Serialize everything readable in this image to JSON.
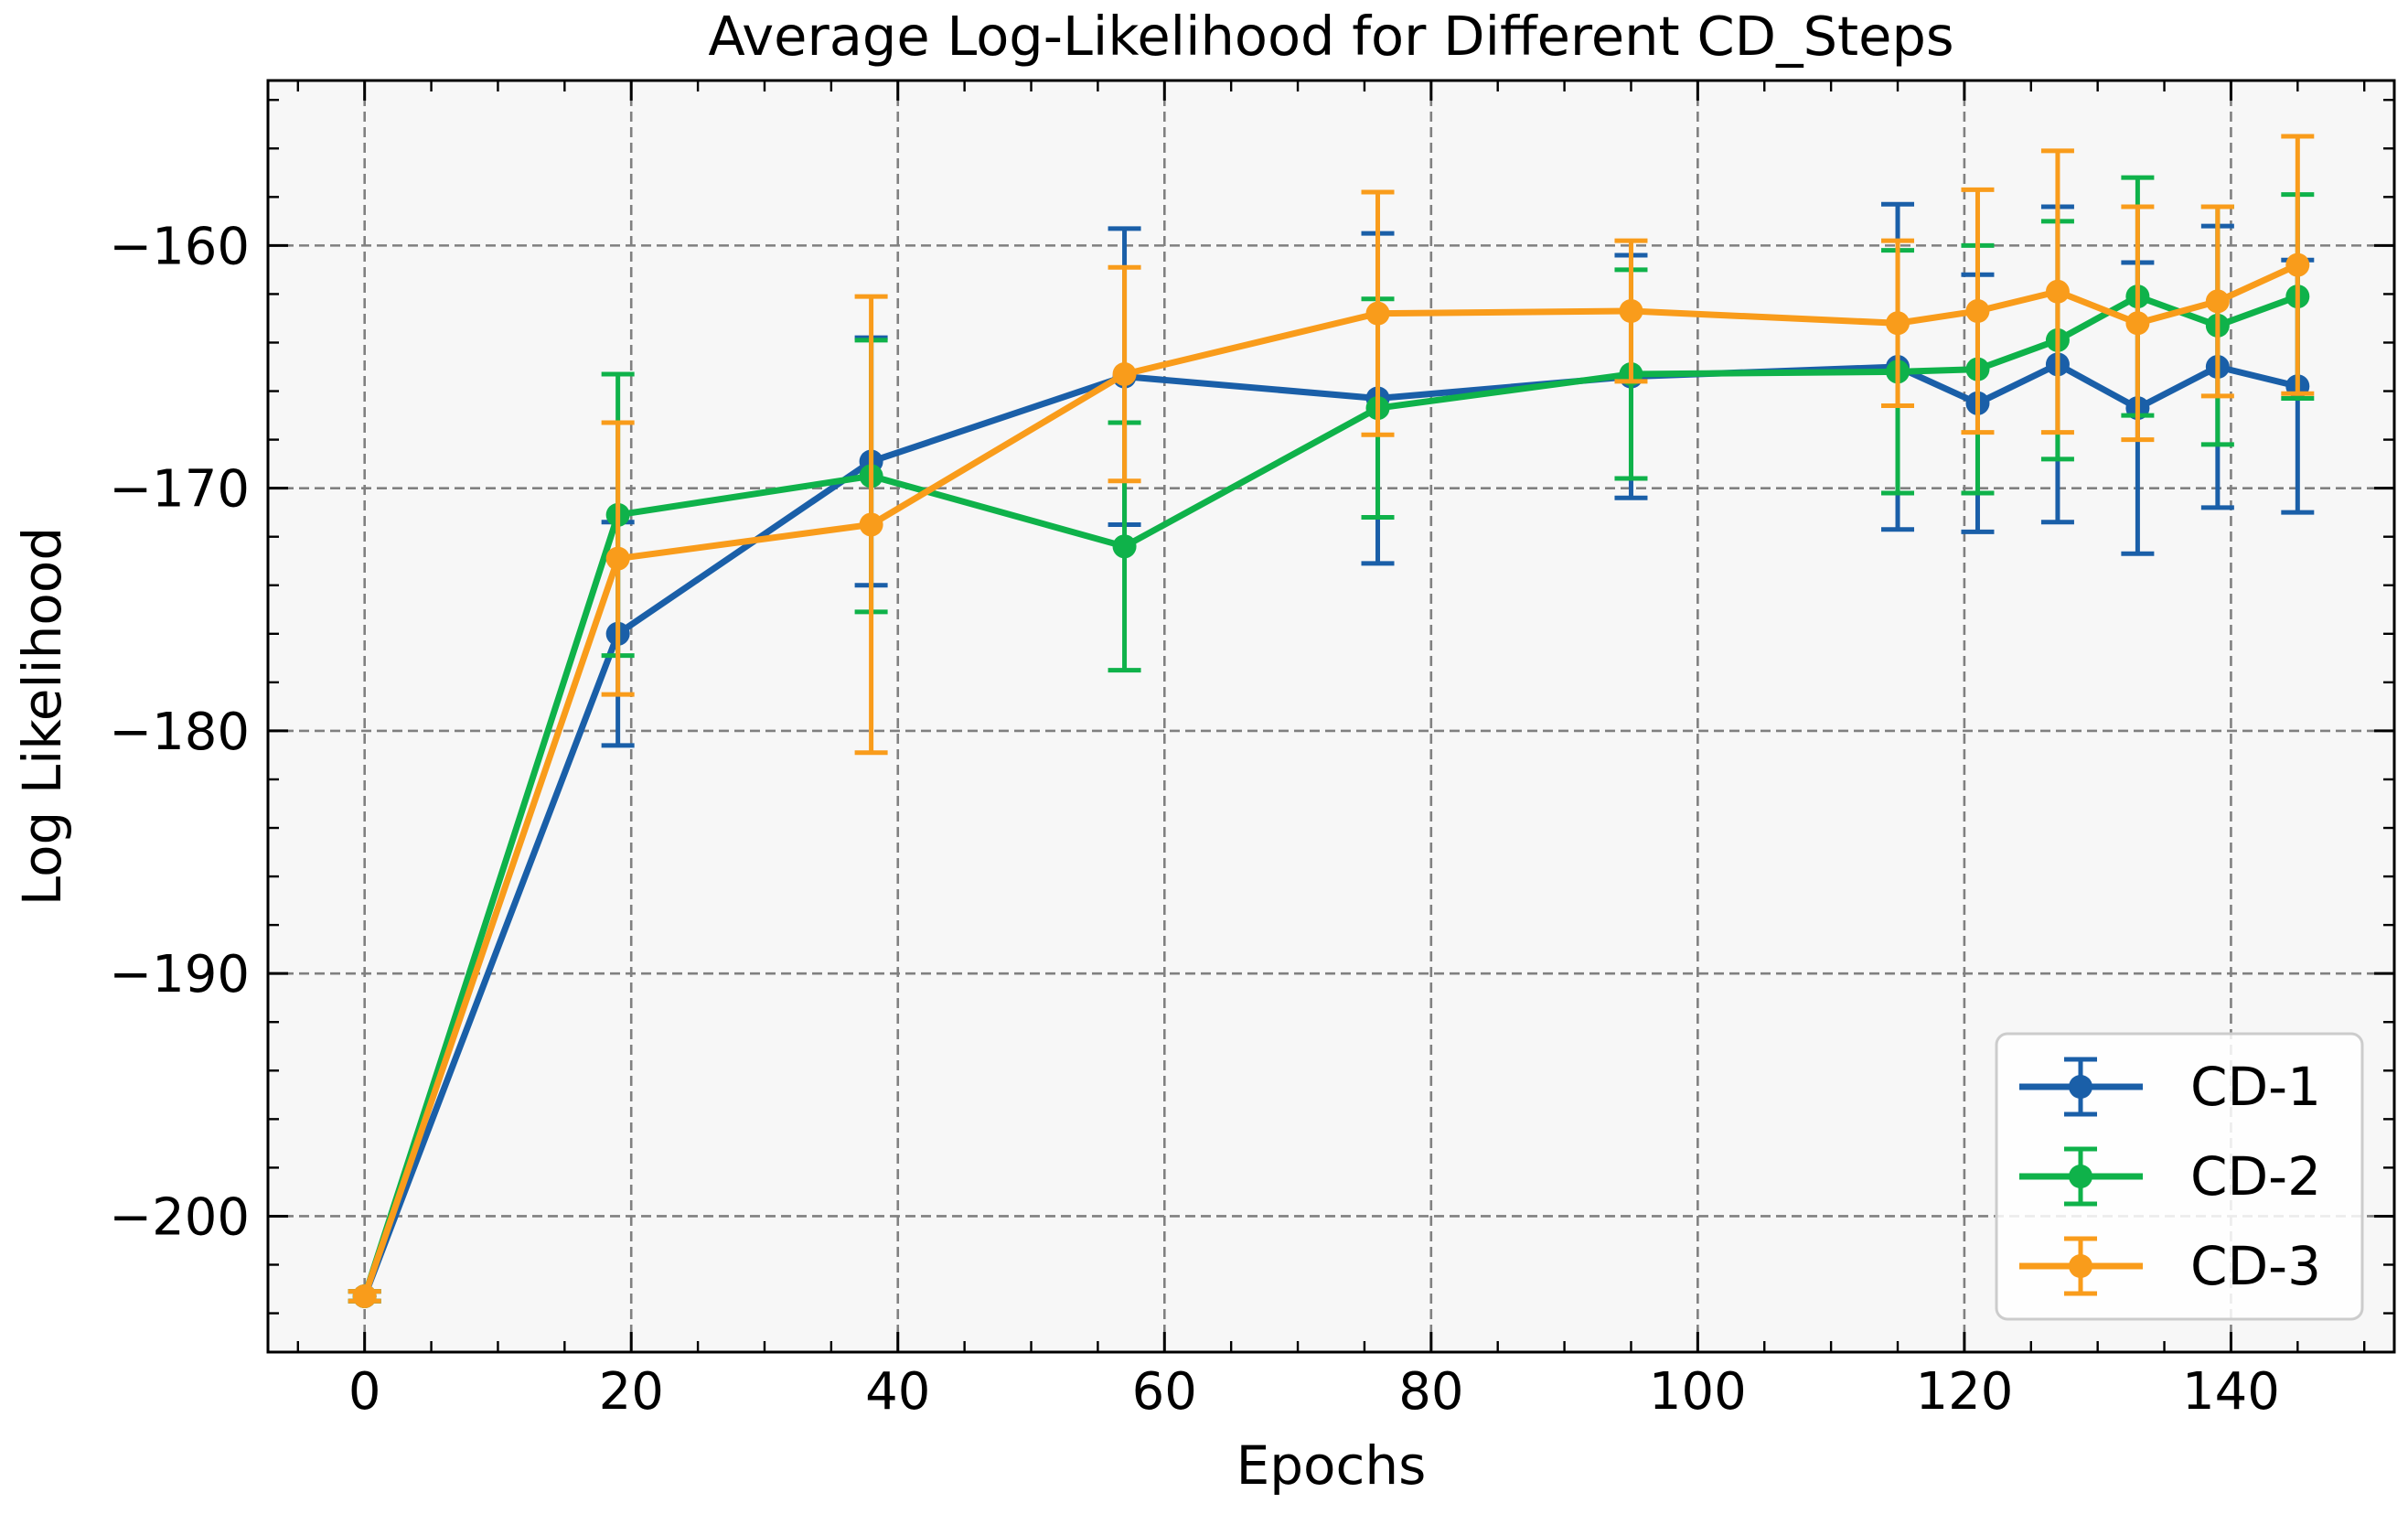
{
  "chart_data": {
    "type": "line",
    "title": "Average Log-Likelihood for Different CD_Steps",
    "xlabel": "Epochs",
    "ylabel": "Log Likelihood",
    "xlim": [
      -7.25,
      152.25
    ],
    "ylim": [
      -205.6,
      -153.2
    ],
    "xticks": [
      0,
      20,
      40,
      60,
      80,
      100,
      120,
      140
    ],
    "xtick_labels": [
      "0",
      "20",
      "40",
      "60",
      "80",
      "100",
      "120",
      "140"
    ],
    "yticks": [
      -200,
      -190,
      -180,
      -170,
      -160
    ],
    "ytick_labels": [
      "−200",
      "−190",
      "−180",
      "−170",
      "−160"
    ],
    "grid": true,
    "error_bars": true,
    "legend_position": "lower-right",
    "background": "#f7f7f7",
    "series": [
      {
        "name": "CD-1",
        "color": "#1a5fa8",
        "x": [
          0,
          19,
          38,
          57,
          76,
          95,
          115,
          121,
          127,
          133,
          139,
          145
        ],
        "y": [
          -203.3,
          -176.0,
          -168.9,
          -165.4,
          -166.3,
          -165.4,
          -165.0,
          -166.5,
          -164.9,
          -166.7,
          -165.0,
          -165.8
        ],
        "yerr": [
          0.2,
          4.6,
          5.1,
          6.1,
          6.8,
          5.0,
          6.7,
          5.3,
          6.5,
          6.0,
          5.8,
          5.2
        ]
      },
      {
        "name": "CD-2",
        "color": "#0fb24a",
        "x": [
          0,
          19,
          38,
          57,
          76,
          95,
          115,
          121,
          127,
          133,
          139,
          145
        ],
        "y": [
          -203.3,
          -171.1,
          -169.5,
          -172.4,
          -166.7,
          -165.3,
          -165.2,
          -165.1,
          -163.9,
          -162.1,
          -163.3,
          -162.1
        ],
        "yerr": [
          0.2,
          5.8,
          5.6,
          5.1,
          4.5,
          4.3,
          5.0,
          5.1,
          4.9,
          4.9,
          4.9,
          4.2
        ]
      },
      {
        "name": "CD-3",
        "color": "#f99c1b",
        "x": [
          0,
          19,
          38,
          57,
          76,
          95,
          115,
          121,
          127,
          133,
          139,
          145
        ],
        "y": [
          -203.3,
          -172.9,
          -171.5,
          -165.3,
          -162.8,
          -162.7,
          -163.2,
          -162.7,
          -161.9,
          -163.2,
          -162.3,
          -160.8
        ],
        "yerr": [
          0.2,
          5.6,
          9.4,
          4.4,
          5.0,
          2.9,
          3.4,
          5.0,
          5.8,
          4.8,
          3.9,
          5.3
        ]
      }
    ]
  }
}
